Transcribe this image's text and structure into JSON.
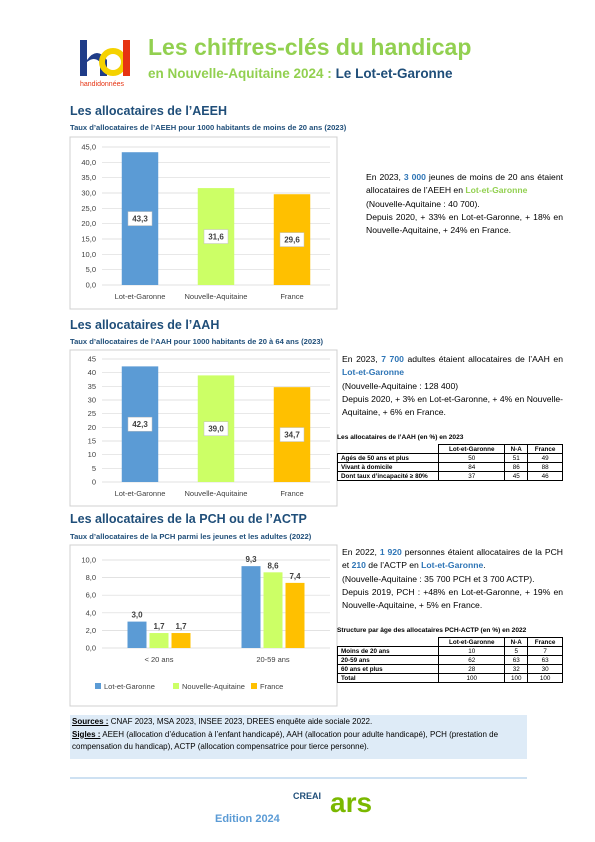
{
  "header": {
    "title": "Les chiffres-clés du handicap",
    "subtitle": "en Nouvelle-Aquitaine 2024 : ",
    "place": "Le Lot-et-Garonne",
    "logo_text": "handidonnées"
  },
  "sections": [
    {
      "heading": "Les allocataires de l’AEEH",
      "text": [
        "En 2023, ",
        "3 000",
        " jeunes de moins de 20 ans étaient allocataires de l’AEEH en ",
        "Lot-et-Garonne",
        "(Nouvelle-Aquitaine : 40 700).",
        "Depuis 2020, + 33% en Lot-et-Garonne, + 18% en Nouvelle-Aquitaine, + 24% en France."
      ]
    },
    {
      "heading": "Les allocataires de l’AAH",
      "text": [
        "En 2023, ",
        "7 700",
        " adultes étaient allocataires de l’AAH en ",
        "Lot-et-Garonne",
        "(Nouvelle-Aquitaine : 128 400)",
        "Depuis 2020, + 3% en Lot-et-Garonne, + 4% en Nouvelle-Aquitaine, + 6% en France."
      ]
    },
    {
      "heading": "Les allocataires de la PCH ou de l’ACTP",
      "text": [
        "En 2022, ",
        "1 920",
        " personnes étaient allocataires de la PCH et ",
        "210",
        " de l’ACTP en ",
        "Lot-et-Garonne",
        ".",
        "(Nouvelle-Aquitaine : 35 700 PCH et 3 700 ACTP).",
        "Depuis 2019, PCH : +48% en Lot-et-Garonne, + 19% en Nouvelle-Aquitaine, + 5% en France."
      ]
    }
  ],
  "chart_data": [
    {
      "type": "bar",
      "title": "Taux d’allocataires de l’AEEH pour 1000 habitants de moins de 20 ans (2023)",
      "categories": [
        "Lot-et-Garonne",
        "Nouvelle-Aquitaine",
        "France"
      ],
      "values": [
        43.3,
        31.6,
        29.6
      ],
      "value_labels": [
        "43,3",
        "31,6",
        "29,6"
      ],
      "colors": [
        "#5b9bd5",
        "#ccff66",
        "#ffc000"
      ],
      "ylim": [
        0,
        45
      ],
      "yticks": [
        {
          "value": 0,
          "label": "0,0"
        },
        {
          "value": 5,
          "label": "5,0"
        },
        {
          "value": 10,
          "label": "10,0"
        },
        {
          "value": 15,
          "label": "15,0"
        },
        {
          "value": 20,
          "label": "20,0"
        },
        {
          "value": 25,
          "label": "25,0"
        },
        {
          "value": 30,
          "label": "30,0"
        },
        {
          "value": 35,
          "label": "35,0"
        },
        {
          "value": 40,
          "label": "40,0"
        },
        {
          "value": 45,
          "label": "45,0"
        }
      ],
      "grid": true
    },
    {
      "type": "bar",
      "title": "Taux d’allocataires de l’AAH pour 1000 habitants de 20 à 64 ans (2023)",
      "categories": [
        "Lot-et-Garonne",
        "Nouvelle-Aquitaine",
        "France"
      ],
      "values": [
        42.3,
        39.0,
        34.7
      ],
      "value_labels": [
        "42,3",
        "39,0",
        "34,7"
      ],
      "colors": [
        "#5b9bd5",
        "#ccff66",
        "#ffc000"
      ],
      "ylim": [
        0,
        45
      ],
      "yticks": [
        0,
        5,
        10,
        15,
        20,
        25,
        30,
        35,
        40,
        45
      ],
      "grid": true
    },
    {
      "type": "grouped-bar",
      "title": "Taux d’allocataires de la PCH parmi les jeunes et les adultes (2022)",
      "categories": [
        "< 20 ans",
        "20-59 ans"
      ],
      "series": [
        {
          "name": "Lot-et-Garonne",
          "color": "#5b9bd5",
          "values": [
            3.0,
            9.3
          ],
          "value_labels": [
            "3,0",
            "9,3"
          ]
        },
        {
          "name": "Nouvelle-Aquitaine",
          "color": "#ccff66",
          "values": [
            1.7,
            8.6
          ],
          "value_labels": [
            "1,7",
            "8,6"
          ]
        },
        {
          "name": "France",
          "color": "#ffc000",
          "values": [
            1.7,
            7.4
          ],
          "value_labels": [
            "1,7",
            "7,4"
          ]
        }
      ],
      "ylim": [
        0,
        10
      ],
      "yticks": [
        {
          "value": 0,
          "label": "0,0"
        },
        {
          "value": 2,
          "label": "2,0"
        },
        {
          "value": 4,
          "label": "4,0"
        },
        {
          "value": 6,
          "label": "6,0"
        },
        {
          "value": 8,
          "label": "8,0"
        },
        {
          "value": 10,
          "label": "10,0"
        }
      ],
      "grid": true,
      "legend": "bottom"
    }
  ],
  "tables": [
    {
      "title": "Les allocataires de l’AAH (en %) en 2023",
      "columns": [
        "Lot-et-Garonne",
        "N-A",
        "France"
      ],
      "rows": [
        {
          "label": "Agés de 50 ans et plus",
          "values": [
            50,
            51,
            49
          ]
        },
        {
          "label": "Vivant à domicile",
          "values": [
            84,
            86,
            88
          ]
        },
        {
          "label": "Dont taux d’incapacité ≥ 80%",
          "values": [
            37,
            45,
            46
          ]
        }
      ]
    },
    {
      "title": "Structure par âge des allocataires PCH-ACTP (en %) en 2022",
      "columns": [
        "Lot-et-Garonne",
        "N-A",
        "France"
      ],
      "rows": [
        {
          "label": "Moins de 20 ans",
          "values": [
            10,
            5,
            7
          ]
        },
        {
          "label": "20-59 ans",
          "values": [
            62,
            63,
            63
          ]
        },
        {
          "label": "60 ans et plus",
          "values": [
            28,
            32,
            30
          ]
        },
        {
          "label": "Total",
          "values": [
            100,
            100,
            100
          ]
        }
      ]
    }
  ],
  "footer": {
    "sources_label": "Sources :",
    "sources": " CNAF 2023, MSA 2023, INSEE 2023, DREES enquête aide sociale 2022.",
    "sigles_label": "Sigles :",
    "sigles": " AEEH (allocation d’éducation à l’enfant handicapé), AAH (allocation pour adulte handicapé), PCH (prestation de compensation du handicap), ACTP (allocation compensatrice pour tierce personne).",
    "edition": "Edition 2024",
    "logo_creai": "CREAI",
    "logo_ars": "ars"
  }
}
